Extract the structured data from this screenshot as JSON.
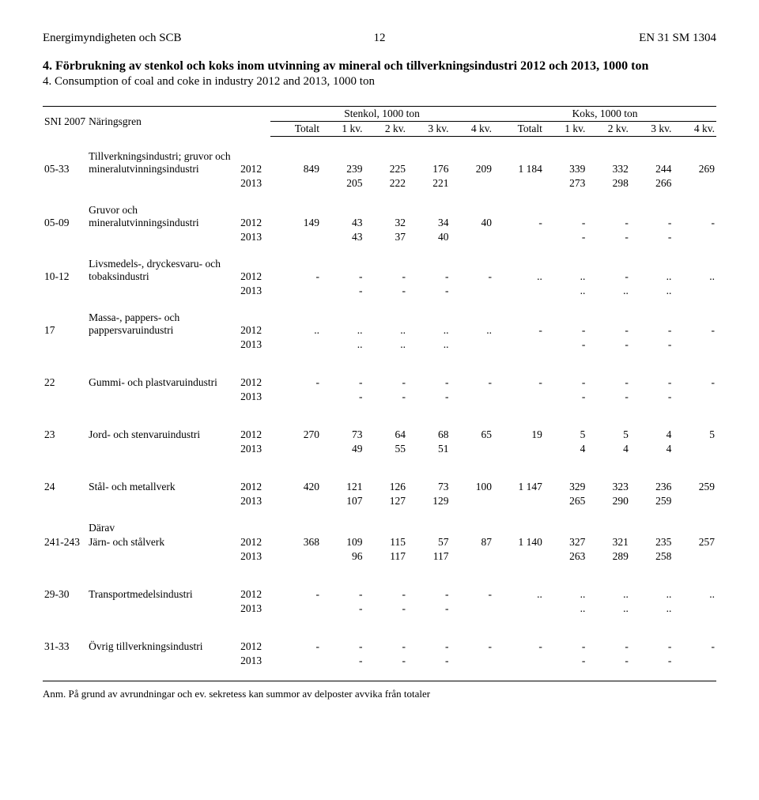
{
  "header": {
    "left": "Energimyndigheten och SCB",
    "mid": "12",
    "right": "EN 31 SM 1304"
  },
  "title": {
    "sv": "4. Förbrukning av stenkol och koks inom utvinning av mineral och tillverkningsindustri 2012 och 2013, 1000 ton",
    "en": "4. Consumption of coal and coke in industry 2012 and 2013, 1000 ton"
  },
  "columns": {
    "sni": "SNI 2007",
    "naringsgren": "Näringsgren",
    "group1": "Stenkol, 1000 ton",
    "group2": "Koks, 1000 ton",
    "totalt": "Totalt",
    "kv1": "1 kv.",
    "kv2": "2 kv.",
    "kv3": "3 kv.",
    "kv4": "4 kv."
  },
  "rows": [
    {
      "sni": "05-33",
      "name": "Tillverkningsindustri; gruvor och mineralutvinningsindustri",
      "y2012": [
        "849",
        "239",
        "225",
        "176",
        "209",
        "1 184",
        "339",
        "332",
        "244",
        "269"
      ],
      "y2013": [
        "",
        "205",
        "222",
        "221",
        "",
        "",
        "273",
        "298",
        "266",
        ""
      ]
    },
    {
      "sni": "05-09",
      "name": "Gruvor och mineralutvinningsindustri",
      "y2012": [
        "149",
        "43",
        "32",
        "34",
        "40",
        "-",
        "-",
        "-",
        "-",
        "-"
      ],
      "y2013": [
        "",
        "43",
        "37",
        "40",
        "",
        "",
        "-",
        "-",
        "-",
        ""
      ]
    },
    {
      "sni": "10-12",
      "name": "Livsmedels-, dryckesvaru- och tobaksindustri",
      "y2012": [
        "-",
        "-",
        "-",
        "-",
        "-",
        "..",
        "..",
        "-",
        "..",
        ".."
      ],
      "y2013": [
        "",
        "-",
        "-",
        "-",
        "",
        "",
        "..",
        "..",
        "..",
        ""
      ]
    },
    {
      "sni": "17",
      "name": "Massa-, pappers- och pappersvaruindustri",
      "y2012": [
        "..",
        "..",
        "..",
        "..",
        "..",
        "-",
        "-",
        "-",
        "-",
        "-"
      ],
      "y2013": [
        "",
        "..",
        "..",
        "..",
        "",
        "",
        "-",
        "-",
        "-",
        ""
      ]
    },
    {
      "sni": "22",
      "name": "Gummi- och plastvaruindustri",
      "y2012": [
        "-",
        "-",
        "-",
        "-",
        "-",
        "-",
        "-",
        "-",
        "-",
        "-"
      ],
      "y2013": [
        "",
        "-",
        "-",
        "-",
        "",
        "",
        "-",
        "-",
        "-",
        ""
      ]
    },
    {
      "sni": "23",
      "name": "Jord- och stenvaruindustri",
      "y2012": [
        "270",
        "73",
        "64",
        "68",
        "65",
        "19",
        "5",
        "5",
        "4",
        "5"
      ],
      "y2013": [
        "",
        "49",
        "55",
        "51",
        "",
        "",
        "4",
        "4",
        "4",
        ""
      ]
    },
    {
      "sni": "24",
      "name": "Stål- och metallverk",
      "y2012": [
        "420",
        "121",
        "126",
        "73",
        "100",
        "1 147",
        "329",
        "323",
        "236",
        "259"
      ],
      "y2013": [
        "",
        "107",
        "127",
        "129",
        "",
        "",
        "265",
        "290",
        "259",
        ""
      ]
    },
    {
      "sni": "241-243",
      "name_prefix": "Därav",
      "name": "Järn- och stålverk",
      "y2012": [
        "368",
        "109",
        "115",
        "57",
        "87",
        "1 140",
        "327",
        "321",
        "235",
        "257"
      ],
      "y2013": [
        "",
        "96",
        "117",
        "117",
        "",
        "",
        "263",
        "289",
        "258",
        ""
      ]
    },
    {
      "sni": "29-30",
      "name": "Transportmedelsindustri",
      "y2012": [
        "-",
        "-",
        "-",
        "-",
        "-",
        "..",
        "..",
        "..",
        "..",
        ".."
      ],
      "y2013": [
        "",
        "-",
        "-",
        "-",
        "",
        "",
        "..",
        "..",
        "..",
        ""
      ]
    },
    {
      "sni": "31-33",
      "name": "Övrig tillverkningsindustri",
      "y2012": [
        "-",
        "-",
        "-",
        "-",
        "-",
        "-",
        "-",
        "-",
        "-",
        "-"
      ],
      "y2013": [
        "",
        "-",
        "-",
        "-",
        "",
        "",
        "-",
        "-",
        "-",
        ""
      ]
    }
  ],
  "year_labels": {
    "y2012": "2012",
    "y2013": "2013"
  },
  "footnote": "Anm. På grund av avrundningar och ev. sekretess kan summor av delposter avvika från totaler"
}
